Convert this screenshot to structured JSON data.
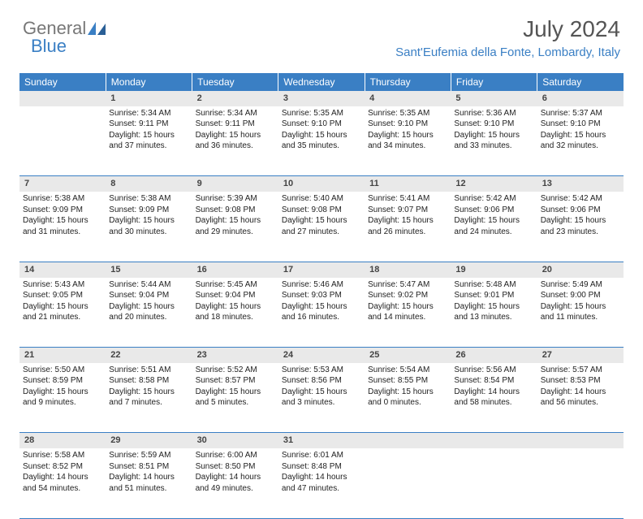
{
  "logo": {
    "text1": "General",
    "text2": "Blue"
  },
  "title": "July 2024",
  "location": "Sant'Eufemia della Fonte, Lombardy, Italy",
  "colors": {
    "accent": "#3a7fc4",
    "daybar": "#e9e9e9",
    "text": "#222222"
  },
  "weekdays": [
    "Sunday",
    "Monday",
    "Tuesday",
    "Wednesday",
    "Thursday",
    "Friday",
    "Saturday"
  ],
  "weeks": [
    {
      "nums": [
        "",
        "1",
        "2",
        "3",
        "4",
        "5",
        "6"
      ],
      "cells": [
        "",
        "Sunrise: 5:34 AM\nSunset: 9:11 PM\nDaylight: 15 hours and 37 minutes.",
        "Sunrise: 5:34 AM\nSunset: 9:11 PM\nDaylight: 15 hours and 36 minutes.",
        "Sunrise: 5:35 AM\nSunset: 9:10 PM\nDaylight: 15 hours and 35 minutes.",
        "Sunrise: 5:35 AM\nSunset: 9:10 PM\nDaylight: 15 hours and 34 minutes.",
        "Sunrise: 5:36 AM\nSunset: 9:10 PM\nDaylight: 15 hours and 33 minutes.",
        "Sunrise: 5:37 AM\nSunset: 9:10 PM\nDaylight: 15 hours and 32 minutes."
      ]
    },
    {
      "nums": [
        "7",
        "8",
        "9",
        "10",
        "11",
        "12",
        "13"
      ],
      "cells": [
        "Sunrise: 5:38 AM\nSunset: 9:09 PM\nDaylight: 15 hours and 31 minutes.",
        "Sunrise: 5:38 AM\nSunset: 9:09 PM\nDaylight: 15 hours and 30 minutes.",
        "Sunrise: 5:39 AM\nSunset: 9:08 PM\nDaylight: 15 hours and 29 minutes.",
        "Sunrise: 5:40 AM\nSunset: 9:08 PM\nDaylight: 15 hours and 27 minutes.",
        "Sunrise: 5:41 AM\nSunset: 9:07 PM\nDaylight: 15 hours and 26 minutes.",
        "Sunrise: 5:42 AM\nSunset: 9:06 PM\nDaylight: 15 hours and 24 minutes.",
        "Sunrise: 5:42 AM\nSunset: 9:06 PM\nDaylight: 15 hours and 23 minutes."
      ]
    },
    {
      "nums": [
        "14",
        "15",
        "16",
        "17",
        "18",
        "19",
        "20"
      ],
      "cells": [
        "Sunrise: 5:43 AM\nSunset: 9:05 PM\nDaylight: 15 hours and 21 minutes.",
        "Sunrise: 5:44 AM\nSunset: 9:04 PM\nDaylight: 15 hours and 20 minutes.",
        "Sunrise: 5:45 AM\nSunset: 9:04 PM\nDaylight: 15 hours and 18 minutes.",
        "Sunrise: 5:46 AM\nSunset: 9:03 PM\nDaylight: 15 hours and 16 minutes.",
        "Sunrise: 5:47 AM\nSunset: 9:02 PM\nDaylight: 15 hours and 14 minutes.",
        "Sunrise: 5:48 AM\nSunset: 9:01 PM\nDaylight: 15 hours and 13 minutes.",
        "Sunrise: 5:49 AM\nSunset: 9:00 PM\nDaylight: 15 hours and 11 minutes."
      ]
    },
    {
      "nums": [
        "21",
        "22",
        "23",
        "24",
        "25",
        "26",
        "27"
      ],
      "cells": [
        "Sunrise: 5:50 AM\nSunset: 8:59 PM\nDaylight: 15 hours and 9 minutes.",
        "Sunrise: 5:51 AM\nSunset: 8:58 PM\nDaylight: 15 hours and 7 minutes.",
        "Sunrise: 5:52 AM\nSunset: 8:57 PM\nDaylight: 15 hours and 5 minutes.",
        "Sunrise: 5:53 AM\nSunset: 8:56 PM\nDaylight: 15 hours and 3 minutes.",
        "Sunrise: 5:54 AM\nSunset: 8:55 PM\nDaylight: 15 hours and 0 minutes.",
        "Sunrise: 5:56 AM\nSunset: 8:54 PM\nDaylight: 14 hours and 58 minutes.",
        "Sunrise: 5:57 AM\nSunset: 8:53 PM\nDaylight: 14 hours and 56 minutes."
      ]
    },
    {
      "nums": [
        "28",
        "29",
        "30",
        "31",
        "",
        "",
        ""
      ],
      "cells": [
        "Sunrise: 5:58 AM\nSunset: 8:52 PM\nDaylight: 14 hours and 54 minutes.",
        "Sunrise: 5:59 AM\nSunset: 8:51 PM\nDaylight: 14 hours and 51 minutes.",
        "Sunrise: 6:00 AM\nSunset: 8:50 PM\nDaylight: 14 hours and 49 minutes.",
        "Sunrise: 6:01 AM\nSunset: 8:48 PM\nDaylight: 14 hours and 47 minutes.",
        "",
        "",
        ""
      ]
    }
  ]
}
